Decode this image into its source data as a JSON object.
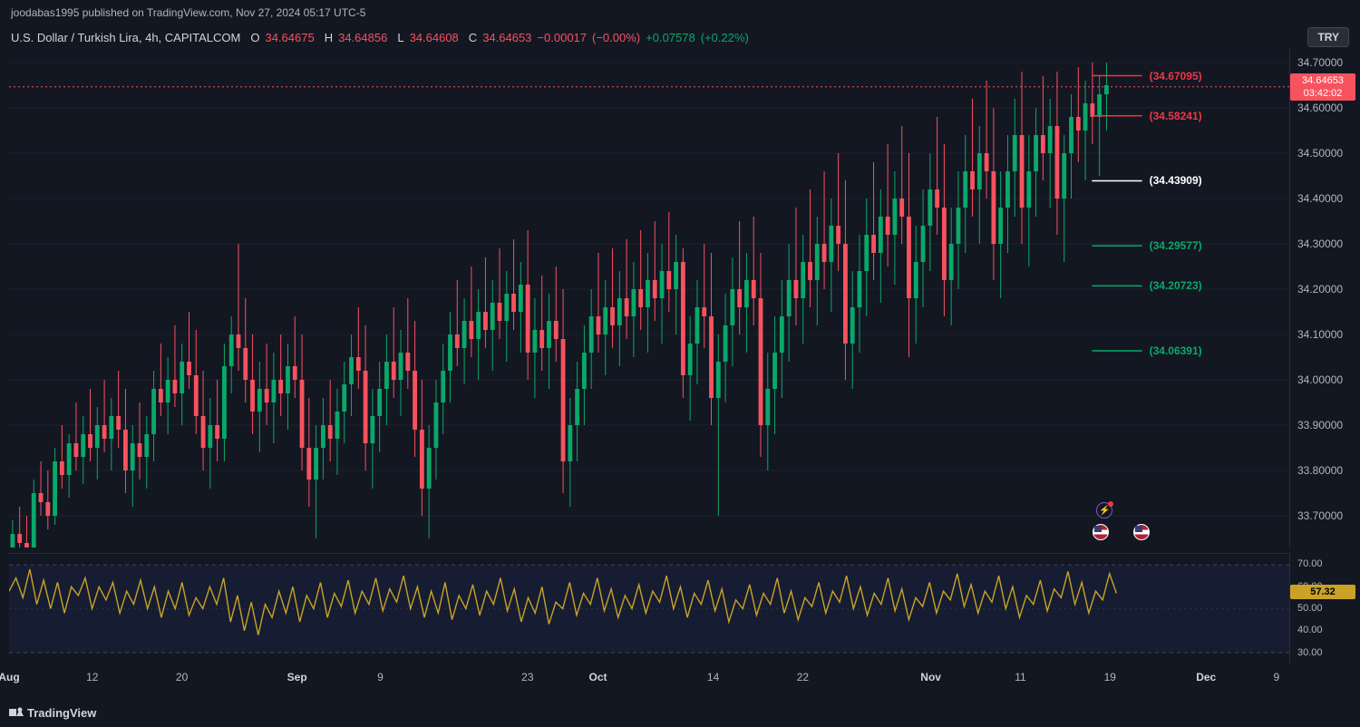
{
  "header": {
    "publish_text": "joodabas1995 published on TradingView.com, Nov 27, 2024 05:17 UTC-5",
    "symbol_title": "U.S. Dollar / Turkish Lira, 4h, CAPITALCOM",
    "open_label": "O",
    "open": "34.64675",
    "high_label": "H",
    "high": "34.64856",
    "low_label": "L",
    "low": "34.64608",
    "close_label": "C",
    "close": "34.64653",
    "change_abs": "−0.00017",
    "change_pct": "(−0.00%)",
    "change2_abs": "+0.07578",
    "change2_pct": "(+0.22%)",
    "try_button": "TRY"
  },
  "price_chart": {
    "type": "candlestick",
    "background": "#131722",
    "grid_color": "#1e222d",
    "up_color": "#0aa869",
    "down_color": "#f7525f",
    "ymin": 33.63,
    "ymax": 34.73,
    "yticks": [
      34.7,
      34.6,
      34.5,
      34.4,
      34.3,
      34.2,
      34.1,
      34.0,
      33.9,
      33.8,
      33.7
    ],
    "current_price_tag": {
      "value": "34.64653",
      "countdown": "03:42:02",
      "bg": "#f7525f"
    },
    "hlines": [
      {
        "label": "(34.67095)",
        "value": 34.67095,
        "color": "#f23645"
      },
      {
        "label": "(34.58241)",
        "value": 34.58241,
        "color": "#f23645"
      },
      {
        "label": "(34.43909)",
        "value": 34.43909,
        "color": "#ffffff"
      },
      {
        "label": "(34.29577)",
        "value": 34.29577,
        "color": "#0aa869"
      },
      {
        "label": "(34.20723)",
        "value": 34.20723,
        "color": "#0aa869"
      },
      {
        "label": "(34.06391)",
        "value": 34.06391,
        "color": "#0aa869"
      }
    ],
    "price_dotted_line": {
      "value": 34.64653,
      "color": "#f7525f"
    },
    "candles": [
      {
        "o": 33.6,
        "h": 33.69,
        "l": 33.58,
        "c": 33.66
      },
      {
        "o": 33.66,
        "h": 33.72,
        "l": 33.62,
        "c": 33.64
      },
      {
        "o": 33.64,
        "h": 33.7,
        "l": 33.6,
        "c": 33.63
      },
      {
        "o": 33.63,
        "h": 33.78,
        "l": 33.61,
        "c": 33.75
      },
      {
        "o": 33.75,
        "h": 33.82,
        "l": 33.7,
        "c": 33.73
      },
      {
        "o": 33.73,
        "h": 33.8,
        "l": 33.67,
        "c": 33.7
      },
      {
        "o": 33.7,
        "h": 33.85,
        "l": 33.68,
        "c": 33.82
      },
      {
        "o": 33.82,
        "h": 33.9,
        "l": 33.76,
        "c": 33.79
      },
      {
        "o": 33.79,
        "h": 33.88,
        "l": 33.74,
        "c": 33.86
      },
      {
        "o": 33.86,
        "h": 33.95,
        "l": 33.8,
        "c": 33.83
      },
      {
        "o": 33.83,
        "h": 33.92,
        "l": 33.77,
        "c": 33.88
      },
      {
        "o": 33.88,
        "h": 33.98,
        "l": 33.82,
        "c": 33.85
      },
      {
        "o": 33.85,
        "h": 33.94,
        "l": 33.78,
        "c": 33.9
      },
      {
        "o": 33.9,
        "h": 34.0,
        "l": 33.84,
        "c": 33.87
      },
      {
        "o": 33.87,
        "h": 33.96,
        "l": 33.8,
        "c": 33.92
      },
      {
        "o": 33.92,
        "h": 34.02,
        "l": 33.85,
        "c": 33.89
      },
      {
        "o": 33.89,
        "h": 33.98,
        "l": 33.75,
        "c": 33.8
      },
      {
        "o": 33.8,
        "h": 33.9,
        "l": 33.72,
        "c": 33.86
      },
      {
        "o": 33.86,
        "h": 33.95,
        "l": 33.78,
        "c": 33.83
      },
      {
        "o": 33.83,
        "h": 33.92,
        "l": 33.76,
        "c": 33.88
      },
      {
        "o": 33.88,
        "h": 34.02,
        "l": 33.82,
        "c": 33.98
      },
      {
        "o": 33.98,
        "h": 34.08,
        "l": 33.92,
        "c": 33.95
      },
      {
        "o": 33.95,
        "h": 34.05,
        "l": 33.88,
        "c": 34.0
      },
      {
        "o": 34.0,
        "h": 34.12,
        "l": 33.94,
        "c": 33.97
      },
      {
        "o": 33.97,
        "h": 34.08,
        "l": 33.9,
        "c": 34.04
      },
      {
        "o": 34.04,
        "h": 34.15,
        "l": 33.98,
        "c": 34.01
      },
      {
        "o": 34.01,
        "h": 34.11,
        "l": 33.88,
        "c": 33.92
      },
      {
        "o": 33.92,
        "h": 34.02,
        "l": 33.8,
        "c": 33.85
      },
      {
        "o": 33.85,
        "h": 33.96,
        "l": 33.76,
        "c": 33.9
      },
      {
        "o": 33.9,
        "h": 34.0,
        "l": 33.82,
        "c": 33.87
      },
      {
        "o": 33.87,
        "h": 34.08,
        "l": 33.82,
        "c": 34.03
      },
      {
        "o": 34.03,
        "h": 34.14,
        "l": 33.97,
        "c": 34.1
      },
      {
        "o": 34.1,
        "h": 34.3,
        "l": 34.02,
        "c": 34.07
      },
      {
        "o": 34.07,
        "h": 34.18,
        "l": 33.95,
        "c": 34.0
      },
      {
        "o": 34.0,
        "h": 34.1,
        "l": 33.88,
        "c": 33.93
      },
      {
        "o": 33.93,
        "h": 34.04,
        "l": 33.84,
        "c": 33.98
      },
      {
        "o": 33.98,
        "h": 34.08,
        "l": 33.9,
        "c": 33.95
      },
      {
        "o": 33.95,
        "h": 34.06,
        "l": 33.86,
        "c": 34.0
      },
      {
        "o": 34.0,
        "h": 34.1,
        "l": 33.92,
        "c": 33.97
      },
      {
        "o": 33.97,
        "h": 34.08,
        "l": 33.89,
        "c": 34.03
      },
      {
        "o": 34.03,
        "h": 34.14,
        "l": 33.96,
        "c": 34.0
      },
      {
        "o": 34.0,
        "h": 34.1,
        "l": 33.8,
        "c": 33.85
      },
      {
        "o": 33.85,
        "h": 33.96,
        "l": 33.72,
        "c": 33.78
      },
      {
        "o": 33.78,
        "h": 33.9,
        "l": 33.65,
        "c": 33.85
      },
      {
        "o": 33.85,
        "h": 33.96,
        "l": 33.78,
        "c": 33.9
      },
      {
        "o": 33.9,
        "h": 34.0,
        "l": 33.82,
        "c": 33.87
      },
      {
        "o": 33.87,
        "h": 33.98,
        "l": 33.79,
        "c": 33.93
      },
      {
        "o": 33.93,
        "h": 34.04,
        "l": 33.86,
        "c": 33.99
      },
      {
        "o": 33.99,
        "h": 34.1,
        "l": 33.92,
        "c": 34.05
      },
      {
        "o": 34.05,
        "h": 34.16,
        "l": 33.98,
        "c": 34.02
      },
      {
        "o": 34.02,
        "h": 34.12,
        "l": 33.8,
        "c": 33.86
      },
      {
        "o": 33.86,
        "h": 33.98,
        "l": 33.76,
        "c": 33.92
      },
      {
        "o": 33.92,
        "h": 34.04,
        "l": 33.84,
        "c": 33.98
      },
      {
        "o": 33.98,
        "h": 34.1,
        "l": 33.9,
        "c": 34.04
      },
      {
        "o": 34.04,
        "h": 34.16,
        "l": 33.96,
        "c": 34.0
      },
      {
        "o": 34.0,
        "h": 34.11,
        "l": 33.92,
        "c": 34.06
      },
      {
        "o": 34.06,
        "h": 34.18,
        "l": 33.98,
        "c": 34.02
      },
      {
        "o": 34.02,
        "h": 34.13,
        "l": 33.83,
        "c": 33.89
      },
      {
        "o": 33.89,
        "h": 34.0,
        "l": 33.7,
        "c": 33.76
      },
      {
        "o": 33.76,
        "h": 33.9,
        "l": 33.65,
        "c": 33.85
      },
      {
        "o": 33.85,
        "h": 34.0,
        "l": 33.78,
        "c": 33.95
      },
      {
        "o": 33.95,
        "h": 34.08,
        "l": 33.88,
        "c": 34.02
      },
      {
        "o": 34.02,
        "h": 34.15,
        "l": 33.95,
        "c": 34.1
      },
      {
        "o": 34.1,
        "h": 34.22,
        "l": 34.03,
        "c": 34.07
      },
      {
        "o": 34.07,
        "h": 34.18,
        "l": 33.99,
        "c": 34.13
      },
      {
        "o": 34.13,
        "h": 34.25,
        "l": 34.05,
        "c": 34.09
      },
      {
        "o": 34.09,
        "h": 34.2,
        "l": 34.0,
        "c": 34.15
      },
      {
        "o": 34.15,
        "h": 34.27,
        "l": 34.07,
        "c": 34.11
      },
      {
        "o": 34.11,
        "h": 34.22,
        "l": 34.02,
        "c": 34.17
      },
      {
        "o": 34.17,
        "h": 34.29,
        "l": 34.09,
        "c": 34.13
      },
      {
        "o": 34.13,
        "h": 34.24,
        "l": 34.04,
        "c": 34.19
      },
      {
        "o": 34.19,
        "h": 34.31,
        "l": 34.11,
        "c": 34.15
      },
      {
        "o": 34.15,
        "h": 34.26,
        "l": 34.06,
        "c": 34.21
      },
      {
        "o": 34.21,
        "h": 34.33,
        "l": 34.0,
        "c": 34.06
      },
      {
        "o": 34.06,
        "h": 34.18,
        "l": 33.96,
        "c": 34.11
      },
      {
        "o": 34.11,
        "h": 34.23,
        "l": 34.02,
        "c": 34.07
      },
      {
        "o": 34.07,
        "h": 34.19,
        "l": 33.98,
        "c": 34.13
      },
      {
        "o": 34.13,
        "h": 34.25,
        "l": 34.04,
        "c": 34.09
      },
      {
        "o": 34.09,
        "h": 34.2,
        "l": 33.75,
        "c": 33.82
      },
      {
        "o": 33.82,
        "h": 33.96,
        "l": 33.72,
        "c": 33.9
      },
      {
        "o": 33.9,
        "h": 34.04,
        "l": 33.82,
        "c": 33.98
      },
      {
        "o": 33.98,
        "h": 34.12,
        "l": 33.9,
        "c": 34.06
      },
      {
        "o": 34.06,
        "h": 34.2,
        "l": 33.98,
        "c": 34.14
      },
      {
        "o": 34.14,
        "h": 34.28,
        "l": 34.06,
        "c": 34.1
      },
      {
        "o": 34.1,
        "h": 34.22,
        "l": 34.01,
        "c": 34.16
      },
      {
        "o": 34.16,
        "h": 34.29,
        "l": 34.07,
        "c": 34.12
      },
      {
        "o": 34.12,
        "h": 34.24,
        "l": 34.03,
        "c": 34.18
      },
      {
        "o": 34.18,
        "h": 34.31,
        "l": 34.09,
        "c": 34.14
      },
      {
        "o": 34.14,
        "h": 34.26,
        "l": 34.05,
        "c": 34.2
      },
      {
        "o": 34.2,
        "h": 34.33,
        "l": 34.11,
        "c": 34.16
      },
      {
        "o": 34.16,
        "h": 34.28,
        "l": 34.06,
        "c": 34.22
      },
      {
        "o": 34.22,
        "h": 34.35,
        "l": 34.13,
        "c": 34.18
      },
      {
        "o": 34.18,
        "h": 34.3,
        "l": 34.08,
        "c": 34.24
      },
      {
        "o": 34.24,
        "h": 34.37,
        "l": 34.15,
        "c": 34.2
      },
      {
        "o": 34.2,
        "h": 34.32,
        "l": 34.1,
        "c": 34.26
      },
      {
        "o": 34.26,
        "h": 34.29,
        "l": 33.96,
        "c": 34.01
      },
      {
        "o": 34.01,
        "h": 34.14,
        "l": 33.91,
        "c": 34.08
      },
      {
        "o": 34.08,
        "h": 34.22,
        "l": 33.99,
        "c": 34.16
      },
      {
        "o": 34.16,
        "h": 34.3,
        "l": 34.07,
        "c": 34.14
      },
      {
        "o": 34.14,
        "h": 34.28,
        "l": 33.9,
        "c": 33.96
      },
      {
        "o": 33.96,
        "h": 34.1,
        "l": 33.7,
        "c": 34.04
      },
      {
        "o": 34.04,
        "h": 34.19,
        "l": 33.95,
        "c": 34.12
      },
      {
        "o": 34.12,
        "h": 34.27,
        "l": 34.03,
        "c": 34.2
      },
      {
        "o": 34.2,
        "h": 34.35,
        "l": 34.1,
        "c": 34.16
      },
      {
        "o": 34.16,
        "h": 34.28,
        "l": 34.06,
        "c": 34.22
      },
      {
        "o": 34.22,
        "h": 34.36,
        "l": 34.12,
        "c": 34.18
      },
      {
        "o": 34.18,
        "h": 34.28,
        "l": 33.83,
        "c": 33.9
      },
      {
        "o": 33.9,
        "h": 34.06,
        "l": 33.8,
        "c": 33.98
      },
      {
        "o": 33.98,
        "h": 34.14,
        "l": 33.88,
        "c": 34.06
      },
      {
        "o": 34.06,
        "h": 34.22,
        "l": 33.96,
        "c": 34.14
      },
      {
        "o": 34.14,
        "h": 34.3,
        "l": 34.04,
        "c": 34.22
      },
      {
        "o": 34.22,
        "h": 34.38,
        "l": 34.12,
        "c": 34.18
      },
      {
        "o": 34.18,
        "h": 34.32,
        "l": 34.08,
        "c": 34.26
      },
      {
        "o": 34.26,
        "h": 34.42,
        "l": 34.16,
        "c": 34.22
      },
      {
        "o": 34.22,
        "h": 34.36,
        "l": 34.12,
        "c": 34.3
      },
      {
        "o": 34.3,
        "h": 34.46,
        "l": 34.2,
        "c": 34.26
      },
      {
        "o": 34.26,
        "h": 34.4,
        "l": 34.15,
        "c": 34.34
      },
      {
        "o": 34.34,
        "h": 34.5,
        "l": 34.24,
        "c": 34.3
      },
      {
        "o": 34.3,
        "h": 34.44,
        "l": 34.0,
        "c": 34.08
      },
      {
        "o": 34.08,
        "h": 34.24,
        "l": 33.98,
        "c": 34.16
      },
      {
        "o": 34.16,
        "h": 34.32,
        "l": 34.06,
        "c": 34.24
      },
      {
        "o": 34.24,
        "h": 34.4,
        "l": 34.14,
        "c": 34.32
      },
      {
        "o": 34.32,
        "h": 34.48,
        "l": 34.22,
        "c": 34.28
      },
      {
        "o": 34.28,
        "h": 34.42,
        "l": 34.17,
        "c": 34.36
      },
      {
        "o": 34.36,
        "h": 34.52,
        "l": 34.25,
        "c": 34.32
      },
      {
        "o": 34.32,
        "h": 34.46,
        "l": 34.21,
        "c": 34.4
      },
      {
        "o": 34.4,
        "h": 34.56,
        "l": 34.3,
        "c": 34.36
      },
      {
        "o": 34.36,
        "h": 34.5,
        "l": 34.05,
        "c": 34.18
      },
      {
        "o": 34.18,
        "h": 34.34,
        "l": 34.08,
        "c": 34.26
      },
      {
        "o": 34.26,
        "h": 34.42,
        "l": 34.16,
        "c": 34.34
      },
      {
        "o": 34.34,
        "h": 34.5,
        "l": 34.24,
        "c": 34.42
      },
      {
        "o": 34.42,
        "h": 34.58,
        "l": 34.32,
        "c": 34.38
      },
      {
        "o": 34.38,
        "h": 34.52,
        "l": 34.14,
        "c": 34.22
      },
      {
        "o": 34.22,
        "h": 34.38,
        "l": 34.12,
        "c": 34.3
      },
      {
        "o": 34.3,
        "h": 34.46,
        "l": 34.2,
        "c": 34.38
      },
      {
        "o": 34.38,
        "h": 34.54,
        "l": 34.28,
        "c": 34.46
      },
      {
        "o": 34.46,
        "h": 34.62,
        "l": 34.36,
        "c": 34.42
      },
      {
        "o": 34.42,
        "h": 34.56,
        "l": 34.3,
        "c": 34.5
      },
      {
        "o": 34.5,
        "h": 34.66,
        "l": 34.4,
        "c": 34.46
      },
      {
        "o": 34.46,
        "h": 34.6,
        "l": 34.22,
        "c": 34.3
      },
      {
        "o": 34.3,
        "h": 34.46,
        "l": 34.18,
        "c": 34.38
      },
      {
        "o": 34.38,
        "h": 34.54,
        "l": 34.28,
        "c": 34.46
      },
      {
        "o": 34.46,
        "h": 34.62,
        "l": 34.36,
        "c": 34.54
      },
      {
        "o": 34.54,
        "h": 34.68,
        "l": 34.3,
        "c": 34.38
      },
      {
        "o": 34.38,
        "h": 34.54,
        "l": 34.25,
        "c": 34.46
      },
      {
        "o": 34.46,
        "h": 34.6,
        "l": 34.36,
        "c": 34.54
      },
      {
        "o": 34.54,
        "h": 34.67,
        "l": 34.44,
        "c": 34.5
      },
      {
        "o": 34.5,
        "h": 34.62,
        "l": 34.38,
        "c": 34.56
      },
      {
        "o": 34.56,
        "h": 34.68,
        "l": 34.32,
        "c": 34.4
      },
      {
        "o": 34.4,
        "h": 34.54,
        "l": 34.26,
        "c": 34.5
      },
      {
        "o": 34.5,
        "h": 34.63,
        "l": 34.4,
        "c": 34.58
      },
      {
        "o": 34.58,
        "h": 34.69,
        "l": 34.48,
        "c": 34.55
      },
      {
        "o": 34.55,
        "h": 34.66,
        "l": 34.44,
        "c": 34.61
      },
      {
        "o": 34.61,
        "h": 34.7,
        "l": 34.52,
        "c": 34.58
      },
      {
        "o": 34.58,
        "h": 34.67,
        "l": 34.45,
        "c": 34.63
      },
      {
        "o": 34.63,
        "h": 34.7,
        "l": 34.55,
        "c": 34.65
      }
    ]
  },
  "rsi": {
    "type": "line",
    "color": "#c9a227",
    "band_color": "#1a2340",
    "ymin": 25,
    "ymax": 75,
    "bands": [
      30,
      70
    ],
    "midline": 50,
    "yticks": [
      70.0,
      60.0,
      50.0,
      40.0,
      30.0
    ],
    "current_tag": "57.32",
    "values": [
      58,
      64,
      55,
      68,
      52,
      63,
      50,
      62,
      48,
      60,
      56,
      64,
      50,
      60,
      54,
      62,
      48,
      58,
      52,
      63,
      50,
      60,
      46,
      58,
      50,
      62,
      47,
      55,
      50,
      60,
      52,
      64,
      44,
      56,
      40,
      53,
      38,
      52,
      46,
      58,
      48,
      60,
      44,
      56,
      50,
      62,
      46,
      57,
      51,
      63,
      48,
      58,
      52,
      64,
      49,
      59,
      53,
      65,
      50,
      60,
      46,
      58,
      48,
      62,
      45,
      56,
      50,
      61,
      47,
      58,
      52,
      64,
      49,
      59,
      44,
      55,
      48,
      60,
      43,
      53,
      50,
      62,
      47,
      57,
      52,
      64,
      49,
      59,
      46,
      56,
      50,
      61,
      48,
      58,
      53,
      65,
      50,
      60,
      46,
      57,
      52,
      63,
      49,
      59,
      44,
      54,
      50,
      61,
      47,
      57,
      52,
      64,
      48,
      58,
      45,
      55,
      51,
      62,
      48,
      58,
      53,
      65,
      50,
      60,
      47,
      57,
      52,
      64,
      49,
      59,
      45,
      55,
      51,
      62,
      48,
      58,
      54,
      66,
      51,
      61,
      48,
      58,
      53,
      65,
      50,
      60,
      46,
      56,
      52,
      63,
      49,
      59,
      55,
      67,
      52,
      62,
      48,
      58,
      54,
      66,
      57
    ]
  },
  "time_axis": {
    "ticks": [
      {
        "pos": 0.0,
        "label": "Aug",
        "bold": true
      },
      {
        "pos": 0.065,
        "label": "12"
      },
      {
        "pos": 0.135,
        "label": "20"
      },
      {
        "pos": 0.225,
        "label": "Sep",
        "bold": true
      },
      {
        "pos": 0.29,
        "label": "9"
      },
      {
        "pos": 0.405,
        "label": "23"
      },
      {
        "pos": 0.46,
        "label": "Oct",
        "bold": true
      },
      {
        "pos": 0.55,
        "label": "14"
      },
      {
        "pos": 0.62,
        "label": "22"
      },
      {
        "pos": 0.72,
        "label": "Nov",
        "bold": true
      },
      {
        "pos": 0.79,
        "label": "11"
      },
      {
        "pos": 0.86,
        "label": "19"
      },
      {
        "pos": 0.935,
        "label": "Dec",
        "bold": true
      },
      {
        "pos": 0.99,
        "label": "9"
      }
    ]
  },
  "footer": {
    "brand": "TradingView"
  }
}
